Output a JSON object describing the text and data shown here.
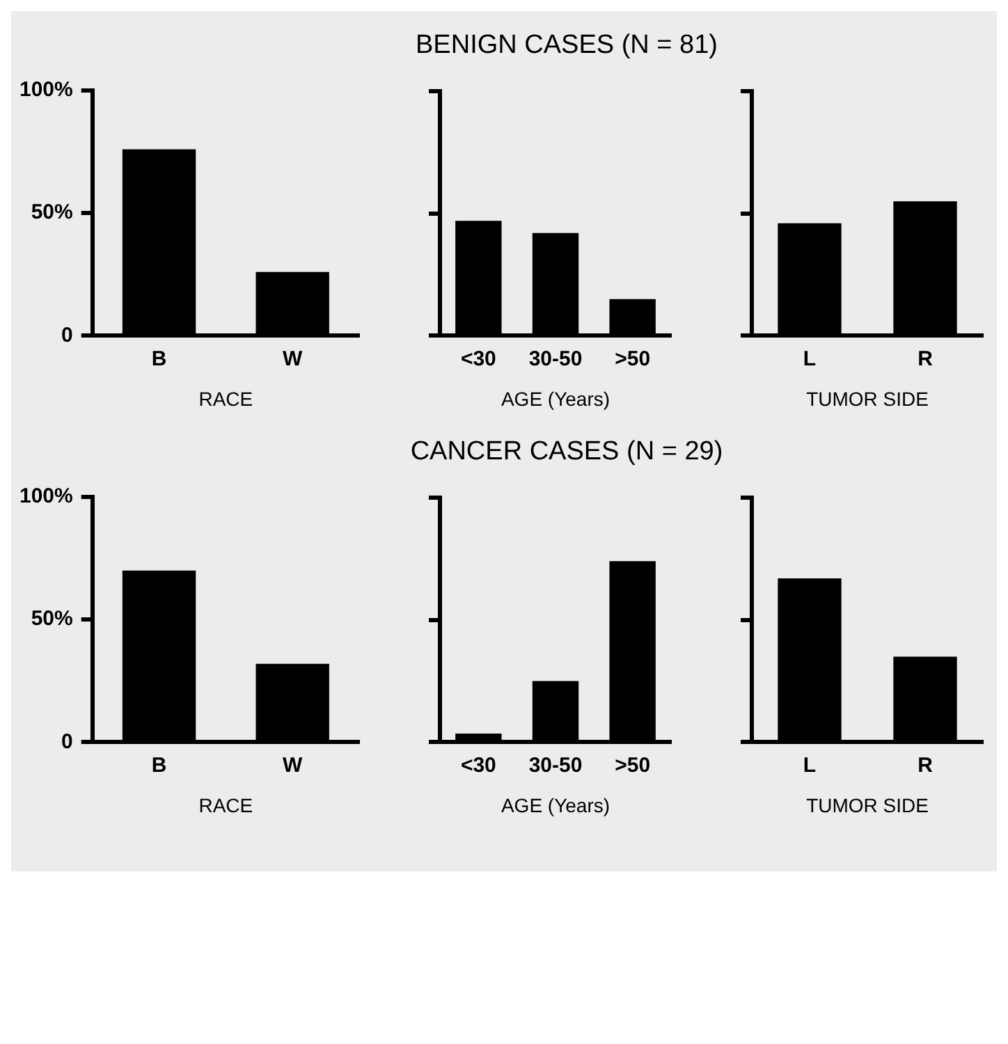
{
  "chart_data": [
    {
      "type": "bar",
      "categories": [
        "B",
        "W"
      ],
      "values": [
        76,
        26
      ],
      "color": "#000000",
      "xlabel": "RACE",
      "ylim": [
        0,
        100
      ],
      "yticks": [
        {
          "value": 0,
          "label": "0"
        },
        {
          "value": 50,
          "label": "50%"
        },
        {
          "value": 100,
          "label": "100%"
        }
      ],
      "grid": false,
      "legend": false
    },
    {
      "type": "bar",
      "title": "BENIGN CASES (N = 81)",
      "categories": [
        "<30",
        "30-50",
        ">50"
      ],
      "values": [
        47,
        42,
        15
      ],
      "color": "#000000",
      "xlabel": "AGE (Years)",
      "ylim": [
        0,
        100
      ],
      "yticks": [
        {
          "value": 0,
          "label": null
        },
        {
          "value": 50,
          "label": null
        },
        {
          "value": 100,
          "label": null
        }
      ],
      "tick_labels": "x",
      "grid": false,
      "legend": false
    },
    {
      "type": "bar",
      "categories": [
        "L",
        "R"
      ],
      "values": [
        46,
        55
      ],
      "color": "#000000",
      "xlabel": "TUMOR SIDE",
      "ylim": [
        0,
        100
      ],
      "yticks": [
        {
          "value": 0,
          "label": null
        },
        {
          "value": 50,
          "label": null
        },
        {
          "value": 100,
          "label": null
        }
      ],
      "tick_labels": "x",
      "grid": false,
      "legend": false
    },
    {
      "type": "bar",
      "categories": [
        "B",
        "W"
      ],
      "values": [
        70,
        32
      ],
      "color": "#000000",
      "xlabel": "RACE",
      "ylim": [
        0,
        100
      ],
      "yticks": [
        {
          "value": 0,
          "label": "0"
        },
        {
          "value": 50,
          "label": "50%"
        },
        {
          "value": 100,
          "label": "100%"
        }
      ],
      "grid": false,
      "legend": false
    },
    {
      "type": "bar",
      "title": "CANCER CASES (N = 29)",
      "categories": [
        "<30",
        "30-50",
        ">50"
      ],
      "values": [
        3.5,
        25,
        74
      ],
      "color": "#000000",
      "xlabel": "AGE (Years)",
      "ylim": [
        0,
        100
      ],
      "yticks": [
        {
          "value": 0,
          "label": null
        },
        {
          "value": 50,
          "label": null
        },
        {
          "value": 100,
          "label": null
        }
      ],
      "tick_labels": "x",
      "grid": false,
      "legend": false
    },
    {
      "type": "bar",
      "categories": [
        "L",
        "R"
      ],
      "values": [
        67,
        35
      ],
      "color": "#000000",
      "xlabel": "TUMOR SIDE",
      "ylim": [
        0,
        100
      ],
      "yticks": [
        {
          "value": 0,
          "label": null
        },
        {
          "value": 50,
          "label": null
        },
        {
          "value": 100,
          "label": null
        }
      ],
      "tick_labels": "x",
      "grid": false,
      "legend": false
    }
  ]
}
